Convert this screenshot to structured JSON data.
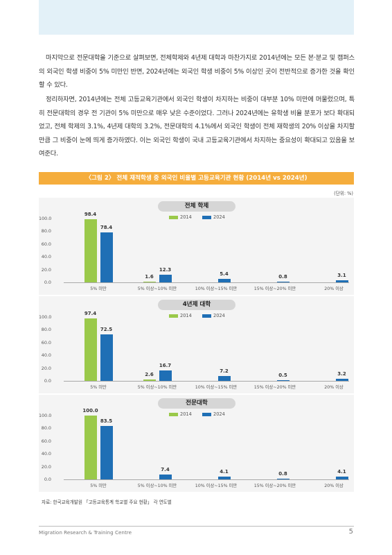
{
  "paragraphs": [
    "마지막으로 전문대학을 기준으로 살펴보면, 전체학제와 4년제 대학과 마찬가지로 2014년에는 모든 본·분교 및 캠퍼스의 외국인 학생 비중이 5% 미만인 반면, 2024년에는 외국인 학생 비중이 5% 이상인 곳이 전반적으로 증가한 것을 확인할 수 있다.",
    "정리하자면, 2014년에는 전체 고등교육기관에서 외국인 학생이 차지하는 비중이 대부분 10% 미만에 머물렀으며, 특히 전문대학의 경우 전 기관이 5% 미만으로 매우 낮은 수준이었다. 그러나 2024년에는 유학생 비율 분포가 보다 확대되었고, 전체 학제의 3.1%, 4년제 대학의 3.2%, 전문대학의 4.1%에서 외국인 학생이 전체 재학생의 20% 이상을 차지할 만큼 그 비중이 눈에 띄게 증가하였다. 이는 외국인 학생이 국내 고등교육기관에서 차지하는 중요성이 확대되고 있음을 보여준다."
  ],
  "figure": {
    "title": "〈그림 2〉 전체 재적학생 중 외국인 비율별 고등교육기관 현황 (2014년 vs 2024년)",
    "unit": "(단위: %)",
    "source": "자료: 한국교육개발원 「고등교육통계 학교별 주요 현황」 각 연도별"
  },
  "colors": {
    "y2014": "#9ac94a",
    "y2024": "#1f6fb5",
    "figure_title_bg": "#f5ad3c"
  },
  "chart_data": [
    {
      "type": "bar",
      "title": "전체 학제",
      "categories": [
        "5% 미만",
        "5% 이상~10% 미만",
        "10% 이상~15% 미만",
        "15% 이상~20% 미만",
        "20% 이상"
      ],
      "series": [
        {
          "name": "2014",
          "values": [
            98.4,
            1.6,
            null,
            null,
            null
          ]
        },
        {
          "name": "2024",
          "values": [
            78.4,
            12.3,
            5.4,
            0.8,
            3.1
          ]
        }
      ],
      "yticks": [
        "100.0",
        "80.0",
        "60.0",
        "40.0",
        "20.0",
        "0.0"
      ],
      "ylim": [
        0,
        100
      ],
      "legend": "top-center"
    },
    {
      "type": "bar",
      "title": "4년제 대학",
      "categories": [
        "5% 미만",
        "5% 이상~10% 미만",
        "10% 이상~15% 미만",
        "15% 이상~20% 미만",
        "20% 이상"
      ],
      "series": [
        {
          "name": "2014",
          "values": [
            97.4,
            2.6,
            null,
            null,
            null
          ]
        },
        {
          "name": "2024",
          "values": [
            72.5,
            16.7,
            7.2,
            0.5,
            3.2
          ]
        }
      ],
      "yticks": [
        "100.0",
        "80.0",
        "60.0",
        "40.0",
        "20.0",
        "0.0"
      ],
      "ylim": [
        0,
        100
      ],
      "legend": "top-center"
    },
    {
      "type": "bar",
      "title": "전문대학",
      "categories": [
        "5% 미만",
        "5% 이상~10% 미만",
        "10% 이상~15% 미만",
        "15% 이상~20% 미만",
        "20% 이상"
      ],
      "series": [
        {
          "name": "2014",
          "values": [
            100.0,
            null,
            null,
            null,
            null
          ]
        },
        {
          "name": "2024",
          "values": [
            83.5,
            7.4,
            4.1,
            0.8,
            4.1
          ]
        }
      ],
      "yticks": [
        "100.0",
        "80.0",
        "60.0",
        "40.0",
        "20.0",
        "0.0"
      ],
      "ylim": [
        0,
        100
      ],
      "legend": "top-center"
    }
  ],
  "footer": {
    "text": "Migration Research & Training Centre",
    "page": "5"
  }
}
